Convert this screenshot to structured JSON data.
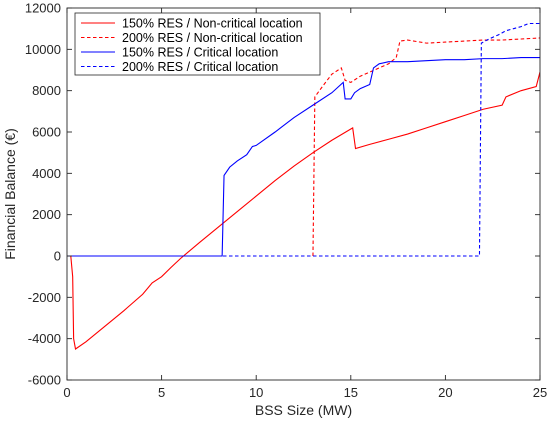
{
  "chart_data": {
    "type": "line",
    "title": "",
    "xlabel": "BSS Size (MW)",
    "ylabel": "Financial Balance (€)",
    "xlim": [
      0,
      25
    ],
    "ylim": [
      -6000,
      12000
    ],
    "xticks": [
      0,
      5,
      10,
      15,
      20,
      25
    ],
    "yticks": [
      -6000,
      -4000,
      -2000,
      0,
      2000,
      4000,
      6000,
      8000,
      10000,
      12000
    ],
    "grid": false,
    "legend_position": "top-left",
    "series": [
      {
        "name": "150% RES / Non-critical location",
        "color": "#ff0000",
        "dash": "solid",
        "points": [
          [
            0,
            0
          ],
          [
            0.2,
            0
          ],
          [
            0.3,
            -1000
          ],
          [
            0.35,
            -4000
          ],
          [
            0.45,
            -4500
          ],
          [
            1,
            -4150
          ],
          [
            2,
            -3400
          ],
          [
            3,
            -2650
          ],
          [
            4,
            -1850
          ],
          [
            4.5,
            -1300
          ],
          [
            5,
            -1000
          ],
          [
            5.5,
            -550
          ],
          [
            6,
            -120
          ],
          [
            7,
            650
          ],
          [
            8,
            1400
          ],
          [
            9,
            2150
          ],
          [
            10,
            2900
          ],
          [
            11,
            3650
          ],
          [
            12,
            4350
          ],
          [
            13,
            5000
          ],
          [
            14,
            5600
          ],
          [
            15.1,
            6200
          ],
          [
            15.25,
            5200
          ],
          [
            16,
            5400
          ],
          [
            17,
            5650
          ],
          [
            18,
            5900
          ],
          [
            19,
            6200
          ],
          [
            20,
            6500
          ],
          [
            21,
            6800
          ],
          [
            22,
            7100
          ],
          [
            23,
            7300
          ],
          [
            23.2,
            7700
          ],
          [
            24,
            8000
          ],
          [
            24.8,
            8200
          ],
          [
            25,
            8900
          ]
        ]
      },
      {
        "name": "200% RES / Non-critical location",
        "color": "#ff0000",
        "dash": "dashed",
        "points": [
          [
            0,
            0
          ],
          [
            13,
            0
          ],
          [
            13.1,
            7700
          ],
          [
            13.5,
            8200
          ],
          [
            14,
            8800
          ],
          [
            14.5,
            9100
          ],
          [
            14.7,
            8500
          ],
          [
            15,
            8400
          ],
          [
            15.5,
            8700
          ],
          [
            16,
            8900
          ],
          [
            16.5,
            9100
          ],
          [
            17,
            9300
          ],
          [
            17.4,
            9600
          ],
          [
            17.6,
            10400
          ],
          [
            18,
            10450
          ],
          [
            19,
            10300
          ],
          [
            20,
            10350
          ],
          [
            21,
            10400
          ],
          [
            22,
            10450
          ],
          [
            23,
            10450
          ],
          [
            24,
            10500
          ],
          [
            25,
            10550
          ]
        ]
      },
      {
        "name": "150% RES / Critical location",
        "color": "#0000ff",
        "dash": "solid",
        "points": [
          [
            0,
            0
          ],
          [
            8.2,
            0
          ],
          [
            8.3,
            3900
          ],
          [
            8.6,
            4300
          ],
          [
            9,
            4600
          ],
          [
            9.5,
            4900
          ],
          [
            9.8,
            5300
          ],
          [
            10,
            5350
          ],
          [
            11,
            6000
          ],
          [
            12,
            6700
          ],
          [
            13,
            7300
          ],
          [
            14,
            7900
          ],
          [
            14.6,
            8400
          ],
          [
            14.7,
            7600
          ],
          [
            15,
            7600
          ],
          [
            15.2,
            7900
          ],
          [
            15.5,
            8100
          ],
          [
            16,
            8300
          ],
          [
            16.2,
            9100
          ],
          [
            16.5,
            9300
          ],
          [
            17,
            9400
          ],
          [
            18,
            9400
          ],
          [
            19,
            9450
          ],
          [
            20,
            9500
          ],
          [
            21,
            9500
          ],
          [
            22,
            9550
          ],
          [
            23,
            9550
          ],
          [
            24,
            9600
          ],
          [
            25,
            9600
          ]
        ]
      },
      {
        "name": "200% RES / Critical location",
        "color": "#0000ff",
        "dash": "dashed",
        "points": [
          [
            0,
            0
          ],
          [
            21.8,
            0
          ],
          [
            21.9,
            10300
          ],
          [
            22.3,
            10500
          ],
          [
            22.8,
            10700
          ],
          [
            23.2,
            10900
          ],
          [
            23.6,
            11000
          ],
          [
            24,
            11100
          ],
          [
            24.4,
            11250
          ],
          [
            25,
            11250
          ]
        ]
      }
    ]
  }
}
